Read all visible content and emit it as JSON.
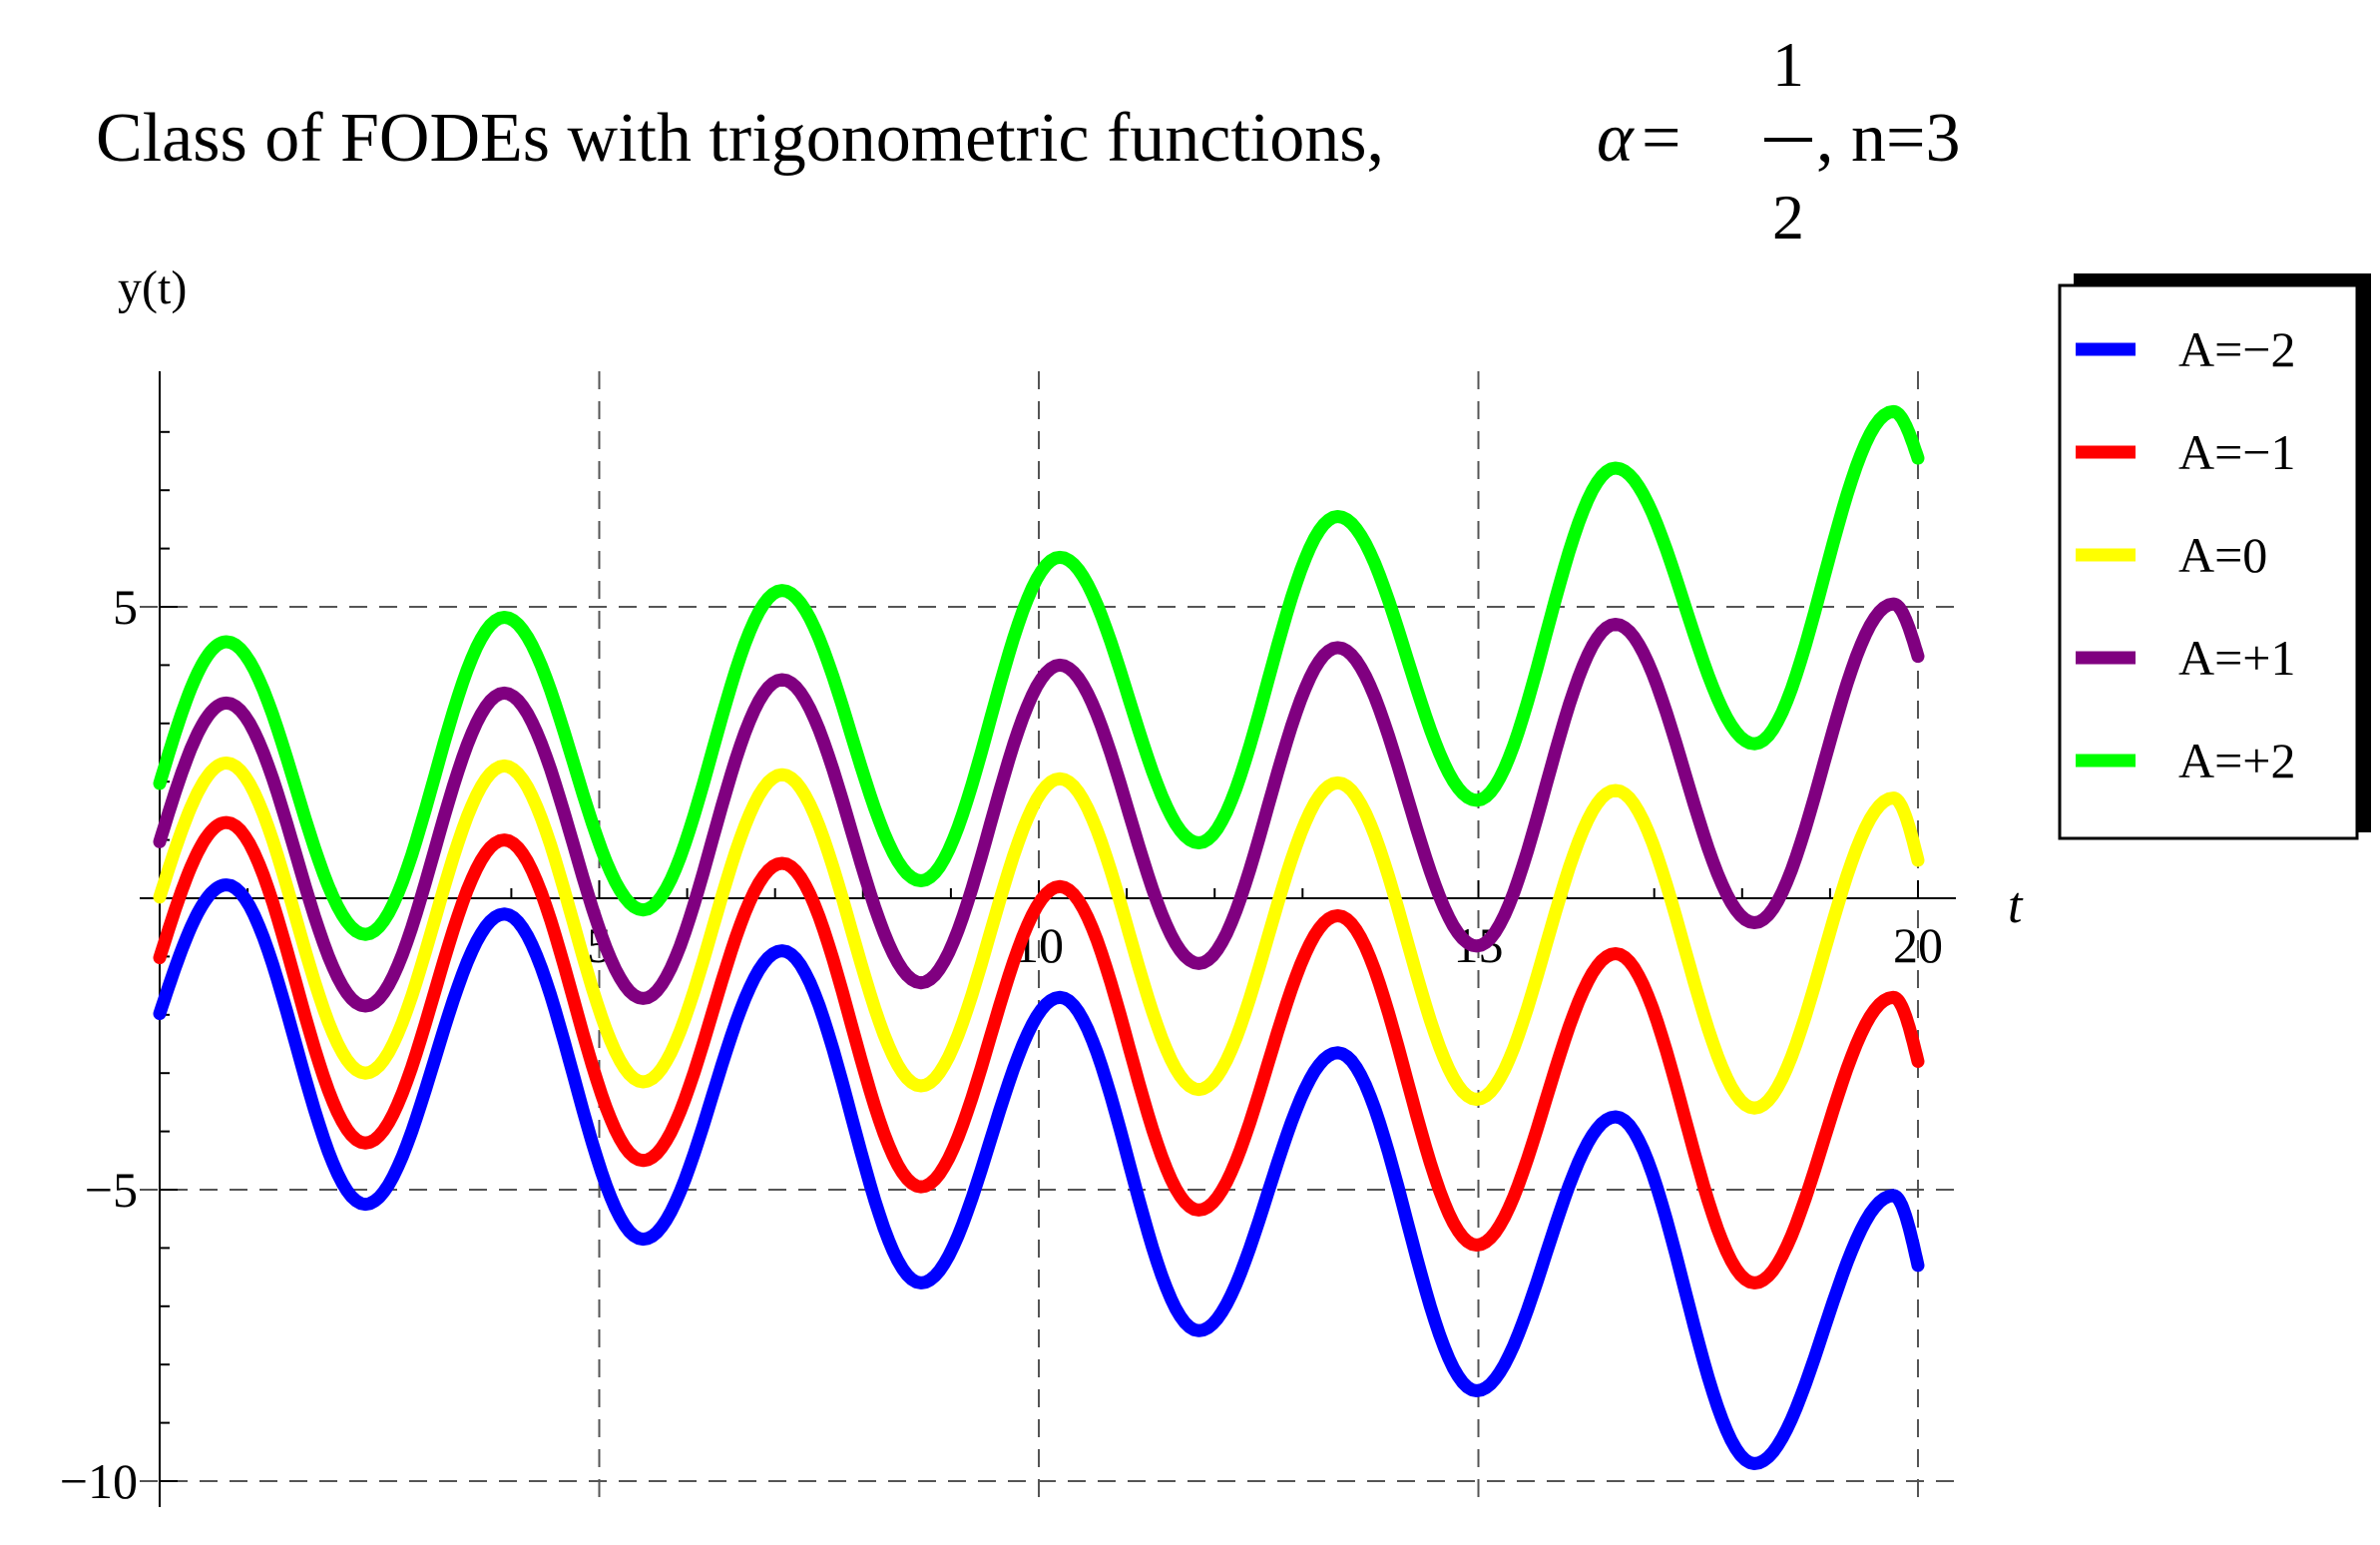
{
  "title": {
    "prefix": "Class of FODEs with trigonometric functions, ",
    "alpha_symbol": "α",
    "equals": "=",
    "frac_numerator": "1",
    "frac_denominator": "2",
    "suffix": ", n=3"
  },
  "chart_data": {
    "type": "line",
    "title": "Class of FODEs with trigonometric functions, α=1/2, n=3",
    "xlabel": "t",
    "ylabel": "y(t)",
    "xlim": [
      0,
      20
    ],
    "ylim": [
      -10,
      8.5
    ],
    "grid": true,
    "grid_style": "dashed",
    "legend_position": "top-right",
    "x_ticks": [
      5,
      10,
      15,
      20
    ],
    "x_tick_labels": [
      "5",
      "10",
      "15",
      "20"
    ],
    "y_ticks": [
      5,
      -5,
      -10
    ],
    "y_tick_labels": [
      "5",
      "−5",
      "−10"
    ],
    "series": [
      {
        "name": "A=−2",
        "color": "#0000ff",
        "x": [
          0,
          0.76,
          2.34,
          3.92,
          5.5,
          7.08,
          8.66,
          10.24,
          11.82,
          13.4,
          14.98,
          16.56,
          18.14,
          19.72,
          20
        ],
        "y": [
          -1.98,
          0.23,
          -5.25,
          -0.27,
          -5.85,
          -0.9,
          -6.6,
          -1.7,
          -7.42,
          -2.65,
          -8.45,
          -3.75,
          -9.7,
          -5.1,
          -6.3
        ]
      },
      {
        "name": "A=−1",
        "color": "#ff0000",
        "x": [
          0,
          0.76,
          2.34,
          3.92,
          5.5,
          7.08,
          8.66,
          10.24,
          11.82,
          13.4,
          14.98,
          16.56,
          18.14,
          19.72,
          20
        ],
        "y": [
          -1.02,
          1.3,
          -4.2,
          1.0,
          -4.5,
          0.6,
          -4.95,
          0.2,
          -5.35,
          -0.3,
          -5.95,
          -0.95,
          -6.6,
          -1.7,
          -2.8
        ]
      },
      {
        "name": "A=0",
        "color": "#ffff00",
        "x": [
          0,
          0.76,
          2.34,
          3.92,
          5.5,
          7.08,
          8.66,
          10.24,
          11.82,
          13.4,
          14.98,
          16.56,
          18.14,
          19.72,
          20
        ],
        "y": [
          0.02,
          2.32,
          -3.0,
          2.27,
          -3.15,
          2.12,
          -3.22,
          2.05,
          -3.28,
          1.98,
          -3.45,
          1.85,
          -3.6,
          1.72,
          0.65
        ]
      },
      {
        "name": "A=+1",
        "color": "#800080",
        "x": [
          0,
          0.76,
          2.34,
          3.92,
          5.5,
          7.08,
          8.66,
          10.24,
          11.82,
          13.4,
          14.98,
          16.56,
          18.14,
          19.72,
          20
        ],
        "y": [
          0.97,
          3.35,
          -1.85,
          3.52,
          -1.72,
          3.75,
          -1.45,
          4.0,
          -1.12,
          4.3,
          -0.82,
          4.7,
          -0.42,
          5.05,
          4.15
        ]
      },
      {
        "name": "A=+2",
        "color": "#00ff00",
        "x": [
          0,
          0.76,
          2.34,
          3.92,
          5.5,
          7.08,
          8.66,
          10.24,
          11.82,
          13.4,
          14.98,
          16.56,
          18.14,
          19.72,
          20
        ],
        "y": [
          1.97,
          4.4,
          -0.62,
          4.82,
          -0.2,
          5.28,
          0.3,
          5.85,
          0.95,
          6.55,
          1.68,
          7.38,
          2.65,
          8.35,
          7.55
        ]
      }
    ]
  },
  "legend": {
    "items": [
      {
        "label": "A=−2",
        "color": "#0000ff"
      },
      {
        "label": "A=−1",
        "color": "#ff0000"
      },
      {
        "label": "A=0",
        "color": "#ffff00"
      },
      {
        "label": "A=+1",
        "color": "#800080"
      },
      {
        "label": "A=+2",
        "color": "#00ff00"
      }
    ]
  }
}
